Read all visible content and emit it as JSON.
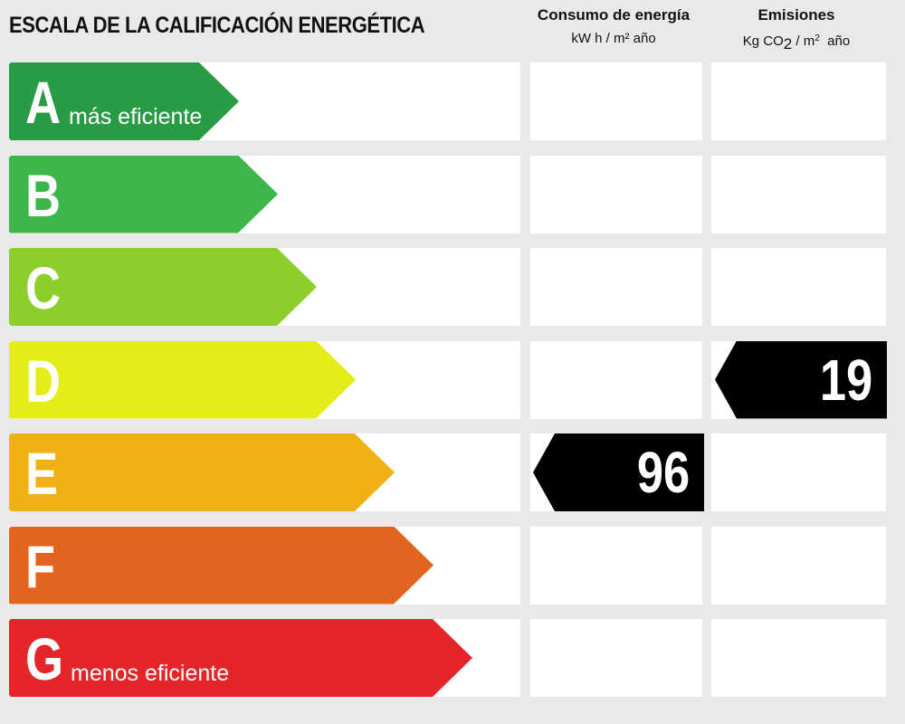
{
  "header": {
    "title": "ESCALA DE LA CALIFICACIÓN ENERGÉTICA",
    "energy_col_title": "Consumo de energía",
    "energy_col_unit": "kW h / m² año",
    "emis_col_title": "Emisiones",
    "emis_unit_prefix": "Kg CO",
    "emis_unit_sub": "2",
    "emis_unit_mid": " / m",
    "emis_unit_sup": "2",
    "emis_unit_suffix": "  año"
  },
  "ratings": [
    {
      "letter": "A",
      "label": "más eficiente",
      "color": "#2a9b45"
    },
    {
      "letter": "B",
      "label": "",
      "color": "#3cb54a"
    },
    {
      "letter": "C",
      "label": "",
      "color": "#8ccf2a"
    },
    {
      "letter": "D",
      "label": "",
      "color": "#e3ed17"
    },
    {
      "letter": "E",
      "label": "",
      "color": "#efb113"
    },
    {
      "letter": "F",
      "label": "",
      "color": "#e2641e"
    },
    {
      "letter": "G",
      "label": "menos eficiente",
      "color": "#e4252a"
    }
  ],
  "energy_rating": {
    "letter": "E",
    "value": "96"
  },
  "emissions_rating": {
    "letter": "D",
    "value": "19"
  }
}
